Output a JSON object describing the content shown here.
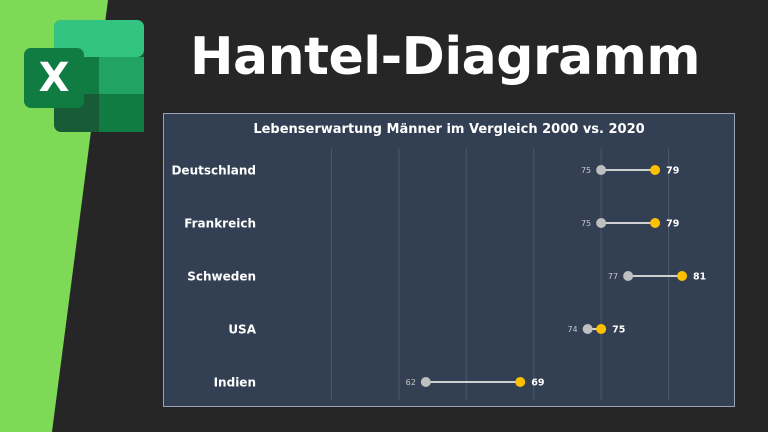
{
  "header": {
    "title": "Hantel-Diagramm",
    "logo_letter": "X"
  },
  "colors": {
    "background": "#262626",
    "accent_green": "#7ed957",
    "panel_bg": "#333f52",
    "series_2000": "#bfbfbf",
    "series_2020": "#ffc000",
    "excel_dark": "#185c37",
    "excel_mid": "#21a366",
    "excel_light": "#33c481"
  },
  "icons": {
    "logo": "microsoft-excel-icon"
  },
  "chart_data": {
    "type": "dumbbell",
    "title": "Lebenserwartung Männer im Vergleich 2000 vs. 2020",
    "categories": [
      "Deutschland",
      "Frankreich",
      "Schweden",
      "USA",
      "Indien"
    ],
    "series": [
      {
        "values": [
          75,
          75,
          77,
          74,
          62
        ],
        "color": "#bfbfbf"
      },
      {
        "values": [
          79,
          79,
          81,
          75,
          69
        ],
        "color": "#ffc000"
      }
    ],
    "xlim": [
      50,
      85
    ],
    "gridlines": [
      55,
      60,
      65,
      70,
      75,
      80
    ],
    "grid": true,
    "legend": "none"
  }
}
